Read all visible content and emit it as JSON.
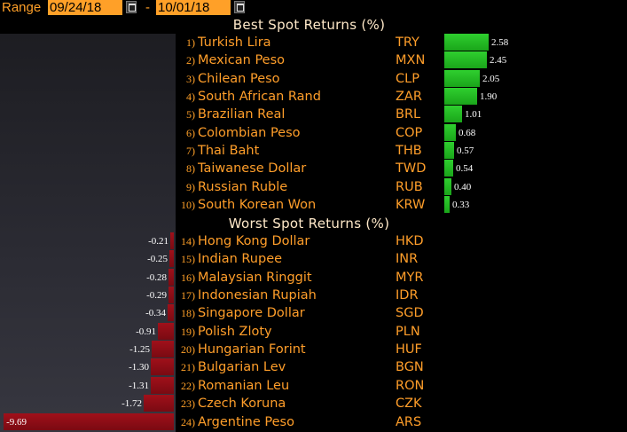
{
  "toolbar": {
    "range_label": "Range",
    "start_date": "09/24/18",
    "end_date": "10/01/18",
    "separator": "-"
  },
  "best": {
    "title": "Best Spot Returns (%)",
    "rows": [
      {
        "rank": "1)",
        "name": "Turkish Lira",
        "code": "TRY",
        "value": 2.58,
        "label": "2.58"
      },
      {
        "rank": "2)",
        "name": "Mexican Peso",
        "code": "MXN",
        "value": 2.45,
        "label": "2.45"
      },
      {
        "rank": "3)",
        "name": "Chilean Peso",
        "code": "CLP",
        "value": 2.05,
        "label": "2.05"
      },
      {
        "rank": "4)",
        "name": "South African Rand",
        "code": "ZAR",
        "value": 1.9,
        "label": "1.90"
      },
      {
        "rank": "5)",
        "name": "Brazilian Real",
        "code": "BRL",
        "value": 1.01,
        "label": "1.01"
      },
      {
        "rank": "6)",
        "name": "Colombian Peso",
        "code": "COP",
        "value": 0.68,
        "label": "0.68"
      },
      {
        "rank": "7)",
        "name": "Thai Baht",
        "code": "THB",
        "value": 0.57,
        "label": "0.57"
      },
      {
        "rank": "8)",
        "name": "Taiwanese Dollar",
        "code": "TWD",
        "value": 0.54,
        "label": "0.54"
      },
      {
        "rank": "9)",
        "name": "Russian Ruble",
        "code": "RUB",
        "value": 0.4,
        "label": "0.40"
      },
      {
        "rank": "10)",
        "name": "South Korean Won",
        "code": "KRW",
        "value": 0.33,
        "label": "0.33"
      }
    ]
  },
  "worst": {
    "title": "Worst Spot Returns (%)",
    "rows": [
      {
        "rank": "14)",
        "name": "Hong Kong Dollar",
        "code": "HKD",
        "value": -0.21,
        "label": "-0.21"
      },
      {
        "rank": "15)",
        "name": "Indian Rupee",
        "code": "INR",
        "value": -0.25,
        "label": "-0.25"
      },
      {
        "rank": "16)",
        "name": "Malaysian Ringgit",
        "code": "MYR",
        "value": -0.28,
        "label": "-0.28"
      },
      {
        "rank": "17)",
        "name": "Indonesian Rupiah",
        "code": "IDR",
        "value": -0.29,
        "label": "-0.29"
      },
      {
        "rank": "18)",
        "name": "Singapore Dollar",
        "code": "SGD",
        "value": -0.34,
        "label": "-0.34"
      },
      {
        "rank": "19)",
        "name": "Polish Zloty",
        "code": "PLN",
        "value": -0.91,
        "label": "-0.91"
      },
      {
        "rank": "20)",
        "name": "Hungarian Forint",
        "code": "HUF",
        "value": -1.25,
        "label": "-1.25"
      },
      {
        "rank": "21)",
        "name": "Bulgarian Lev",
        "code": "BGN",
        "value": -1.3,
        "label": "-1.30"
      },
      {
        "rank": "22)",
        "name": "Romanian Leu",
        "code": "RON",
        "value": -1.31,
        "label": "-1.31"
      },
      {
        "rank": "23)",
        "name": "Czech Koruna",
        "code": "CZK",
        "value": -1.72,
        "label": "-1.72"
      },
      {
        "rank": "24)",
        "name": "Argentine Peso",
        "code": "ARS",
        "value": -9.69,
        "label": "-9.69"
      }
    ]
  },
  "colors": {
    "accent": "#ffa028",
    "positive": "#22b822",
    "negative": "#8e0d16",
    "title": "#ffe9c9"
  },
  "icons": [
    "calendar-icon",
    "calendar-icon"
  ]
}
